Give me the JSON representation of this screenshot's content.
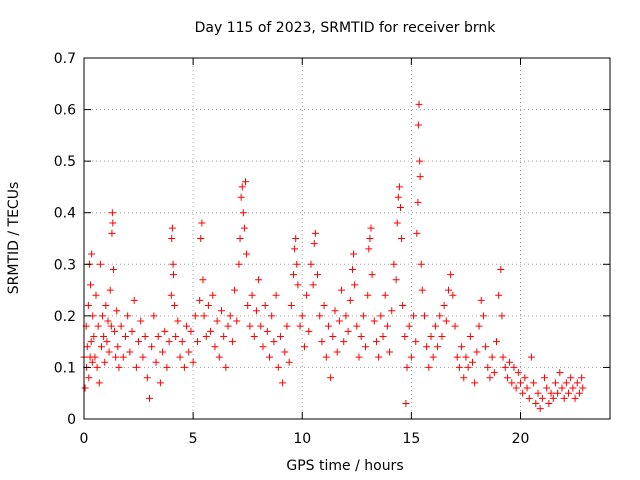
{
  "chart_data": {
    "type": "scatter",
    "title": "Day 115 of 2023, SRMTID for receiver brnk",
    "xlabel": "GPS time / hours",
    "ylabel": "SRMTID / TECUs",
    "xlim": [
      0,
      24.1
    ],
    "ylim": [
      0,
      0.7
    ],
    "xticks": [
      0,
      5,
      10,
      15,
      20
    ],
    "xtick_labels": [
      "0",
      "5",
      "10",
      "15",
      "20"
    ],
    "yticks": [
      0,
      0.1,
      0.2,
      0.3,
      0.4,
      0.5,
      0.6,
      0.7
    ],
    "ytick_labels": [
      "0",
      "0.1",
      "0.2",
      "0.3",
      "0.4",
      "0.5",
      "0.6",
      "0.7"
    ],
    "grid": true,
    "marker": "+",
    "marker_color": "#ff0000",
    "series": [
      {
        "name": "SRMTID",
        "points": [
          [
            0.0,
            0.12
          ],
          [
            0.05,
            0.06
          ],
          [
            0.1,
            0.18
          ],
          [
            0.12,
            0.1
          ],
          [
            0.15,
            0.14
          ],
          [
            0.2,
            0.22
          ],
          [
            0.22,
            0.08
          ],
          [
            0.25,
            0.3
          ],
          [
            0.28,
            0.12
          ],
          [
            0.3,
            0.26
          ],
          [
            0.33,
            0.15
          ],
          [
            0.35,
            0.32
          ],
          [
            0.38,
            0.11
          ],
          [
            0.4,
            0.2
          ],
          [
            0.45,
            0.16
          ],
          [
            0.5,
            0.12
          ],
          [
            0.55,
            0.24
          ],
          [
            0.6,
            0.1
          ],
          [
            0.65,
            0.18
          ],
          [
            0.7,
            0.07
          ],
          [
            0.75,
            0.3
          ],
          [
            0.8,
            0.14
          ],
          [
            0.85,
            0.2
          ],
          [
            0.9,
            0.16
          ],
          [
            0.95,
            0.11
          ],
          [
            1.0,
            0.22
          ],
          [
            1.05,
            0.15
          ],
          [
            1.1,
            0.19
          ],
          [
            1.15,
            0.13
          ],
          [
            1.2,
            0.25
          ],
          [
            1.25,
            0.18
          ],
          [
            1.28,
            0.36
          ],
          [
            1.3,
            0.4
          ],
          [
            1.32,
            0.38
          ],
          [
            1.35,
            0.29
          ],
          [
            1.4,
            0.17
          ],
          [
            1.45,
            0.12
          ],
          [
            1.5,
            0.21
          ],
          [
            1.55,
            0.14
          ],
          [
            1.6,
            0.1
          ],
          [
            1.7,
            0.18
          ],
          [
            1.8,
            0.12
          ],
          [
            1.9,
            0.16
          ],
          [
            2.0,
            0.2
          ],
          [
            2.1,
            0.13
          ],
          [
            2.2,
            0.17
          ],
          [
            2.3,
            0.23
          ],
          [
            2.4,
            0.1
          ],
          [
            2.5,
            0.15
          ],
          [
            2.6,
            0.19
          ],
          [
            2.7,
            0.12
          ],
          [
            2.8,
            0.16
          ],
          [
            2.9,
            0.08
          ],
          [
            3.0,
            0.04
          ],
          [
            3.1,
            0.14
          ],
          [
            3.2,
            0.2
          ],
          [
            3.3,
            0.11
          ],
          [
            3.4,
            0.16
          ],
          [
            3.5,
            0.07
          ],
          [
            3.6,
            0.13
          ],
          [
            3.7,
            0.17
          ],
          [
            3.8,
            0.1
          ],
          [
            3.9,
            0.15
          ],
          [
            4.0,
            0.24
          ],
          [
            4.02,
            0.35
          ],
          [
            4.05,
            0.37
          ],
          [
            4.08,
            0.3
          ],
          [
            4.1,
            0.28
          ],
          [
            4.15,
            0.22
          ],
          [
            4.2,
            0.16
          ],
          [
            4.3,
            0.19
          ],
          [
            4.4,
            0.12
          ],
          [
            4.5,
            0.15
          ],
          [
            4.6,
            0.1
          ],
          [
            4.7,
            0.18
          ],
          [
            4.8,
            0.13
          ],
          [
            4.9,
            0.17
          ],
          [
            5.0,
            0.11
          ],
          [
            5.1,
            0.2
          ],
          [
            5.2,
            0.15
          ],
          [
            5.3,
            0.23
          ],
          [
            5.35,
            0.35
          ],
          [
            5.4,
            0.38
          ],
          [
            5.45,
            0.27
          ],
          [
            5.5,
            0.2
          ],
          [
            5.6,
            0.16
          ],
          [
            5.7,
            0.22
          ],
          [
            5.8,
            0.17
          ],
          [
            5.9,
            0.24
          ],
          [
            6.0,
            0.14
          ],
          [
            6.1,
            0.19
          ],
          [
            6.2,
            0.12
          ],
          [
            6.3,
            0.21
          ],
          [
            6.4,
            0.16
          ],
          [
            6.5,
            0.1
          ],
          [
            6.6,
            0.18
          ],
          [
            6.7,
            0.2
          ],
          [
            6.8,
            0.15
          ],
          [
            6.9,
            0.25
          ],
          [
            7.0,
            0.19
          ],
          [
            7.1,
            0.3
          ],
          [
            7.15,
            0.35
          ],
          [
            7.2,
            0.43
          ],
          [
            7.25,
            0.45
          ],
          [
            7.3,
            0.4
          ],
          [
            7.35,
            0.37
          ],
          [
            7.4,
            0.46
          ],
          [
            7.45,
            0.32
          ],
          [
            7.5,
            0.22
          ],
          [
            7.6,
            0.18
          ],
          [
            7.7,
            0.24
          ],
          [
            7.8,
            0.16
          ],
          [
            7.9,
            0.21
          ],
          [
            8.0,
            0.27
          ],
          [
            8.1,
            0.18
          ],
          [
            8.2,
            0.14
          ],
          [
            8.3,
            0.22
          ],
          [
            8.4,
            0.17
          ],
          [
            8.5,
            0.12
          ],
          [
            8.6,
            0.2
          ],
          [
            8.7,
            0.15
          ],
          [
            8.8,
            0.24
          ],
          [
            8.9,
            0.1
          ],
          [
            9.0,
            0.16
          ],
          [
            9.1,
            0.07
          ],
          [
            9.2,
            0.13
          ],
          [
            9.3,
            0.18
          ],
          [
            9.4,
            0.11
          ],
          [
            9.5,
            0.22
          ],
          [
            9.6,
            0.28
          ],
          [
            9.65,
            0.33
          ],
          [
            9.7,
            0.35
          ],
          [
            9.75,
            0.3
          ],
          [
            9.8,
            0.26
          ],
          [
            9.9,
            0.18
          ],
          [
            10.0,
            0.2
          ],
          [
            10.1,
            0.14
          ],
          [
            10.2,
            0.24
          ],
          [
            10.3,
            0.17
          ],
          [
            10.4,
            0.3
          ],
          [
            10.5,
            0.26
          ],
          [
            10.55,
            0.34
          ],
          [
            10.6,
            0.36
          ],
          [
            10.7,
            0.28
          ],
          [
            10.8,
            0.2
          ],
          [
            10.9,
            0.15
          ],
          [
            11.0,
            0.22
          ],
          [
            11.1,
            0.12
          ],
          [
            11.2,
            0.18
          ],
          [
            11.3,
            0.08
          ],
          [
            11.4,
            0.16
          ],
          [
            11.5,
            0.21
          ],
          [
            11.6,
            0.13
          ],
          [
            11.7,
            0.19
          ],
          [
            11.8,
            0.25
          ],
          [
            11.9,
            0.15
          ],
          [
            12.0,
            0.2
          ],
          [
            12.1,
            0.17
          ],
          [
            12.2,
            0.23
          ],
          [
            12.3,
            0.29
          ],
          [
            12.35,
            0.32
          ],
          [
            12.4,
            0.26
          ],
          [
            12.5,
            0.18
          ],
          [
            12.6,
            0.12
          ],
          [
            12.7,
            0.16
          ],
          [
            12.8,
            0.2
          ],
          [
            12.9,
            0.14
          ],
          [
            13.0,
            0.24
          ],
          [
            13.05,
            0.33
          ],
          [
            13.1,
            0.35
          ],
          [
            13.15,
            0.37
          ],
          [
            13.2,
            0.28
          ],
          [
            13.3,
            0.19
          ],
          [
            13.4,
            0.15
          ],
          [
            13.5,
            0.12
          ],
          [
            13.6,
            0.2
          ],
          [
            13.7,
            0.16
          ],
          [
            13.8,
            0.24
          ],
          [
            13.9,
            0.18
          ],
          [
            14.0,
            0.13
          ],
          [
            14.1,
            0.21
          ],
          [
            14.2,
            0.3
          ],
          [
            14.3,
            0.27
          ],
          [
            14.35,
            0.38
          ],
          [
            14.4,
            0.43
          ],
          [
            14.45,
            0.45
          ],
          [
            14.5,
            0.41
          ],
          [
            14.55,
            0.35
          ],
          [
            14.6,
            0.22
          ],
          [
            14.7,
            0.16
          ],
          [
            14.75,
            0.03
          ],
          [
            14.8,
            0.1
          ],
          [
            14.9,
            0.18
          ],
          [
            15.0,
            0.12
          ],
          [
            15.1,
            0.2
          ],
          [
            15.2,
            0.15
          ],
          [
            15.25,
            0.36
          ],
          [
            15.3,
            0.42
          ],
          [
            15.32,
            0.57
          ],
          [
            15.35,
            0.61
          ],
          [
            15.38,
            0.5
          ],
          [
            15.4,
            0.47
          ],
          [
            15.45,
            0.3
          ],
          [
            15.5,
            0.25
          ],
          [
            15.6,
            0.2
          ],
          [
            15.7,
            0.14
          ],
          [
            15.8,
            0.1
          ],
          [
            15.9,
            0.16
          ],
          [
            16.0,
            0.12
          ],
          [
            16.1,
            0.18
          ],
          [
            16.2,
            0.14
          ],
          [
            16.3,
            0.2
          ],
          [
            16.4,
            0.16
          ],
          [
            16.5,
            0.22
          ],
          [
            16.6,
            0.19
          ],
          [
            16.7,
            0.25
          ],
          [
            16.8,
            0.28
          ],
          [
            16.9,
            0.24
          ],
          [
            17.0,
            0.18
          ],
          [
            17.1,
            0.12
          ],
          [
            17.2,
            0.1
          ],
          [
            17.3,
            0.14
          ],
          [
            17.4,
            0.08
          ],
          [
            17.5,
            0.12
          ],
          [
            17.6,
            0.1
          ],
          [
            17.7,
            0.16
          ],
          [
            17.8,
            0.11
          ],
          [
            17.9,
            0.07
          ],
          [
            18.0,
            0.13
          ],
          [
            18.1,
            0.18
          ],
          [
            18.2,
            0.23
          ],
          [
            18.3,
            0.2
          ],
          [
            18.4,
            0.14
          ],
          [
            18.5,
            0.1
          ],
          [
            18.6,
            0.08
          ],
          [
            18.7,
            0.12
          ],
          [
            18.8,
            0.09
          ],
          [
            18.9,
            0.15
          ],
          [
            19.0,
            0.24
          ],
          [
            19.1,
            0.29
          ],
          [
            19.15,
            0.2
          ],
          [
            19.2,
            0.12
          ],
          [
            19.3,
            0.1
          ],
          [
            19.4,
            0.08
          ],
          [
            19.5,
            0.11
          ],
          [
            19.6,
            0.07
          ],
          [
            19.7,
            0.1
          ],
          [
            19.8,
            0.06
          ],
          [
            19.9,
            0.09
          ],
          [
            20.0,
            0.07
          ],
          [
            20.1,
            0.05
          ],
          [
            20.2,
            0.08
          ],
          [
            20.3,
            0.06
          ],
          [
            20.4,
            0.04
          ],
          [
            20.5,
            0.12
          ],
          [
            20.6,
            0.07
          ],
          [
            20.7,
            0.03
          ],
          [
            20.8,
            0.05
          ],
          [
            20.9,
            0.02
          ],
          [
            21.0,
            0.04
          ],
          [
            21.1,
            0.08
          ],
          [
            21.2,
            0.06
          ],
          [
            21.3,
            0.03
          ],
          [
            21.4,
            0.05
          ],
          [
            21.5,
            0.04
          ],
          [
            21.6,
            0.07
          ],
          [
            21.7,
            0.05
          ],
          [
            21.8,
            0.09
          ],
          [
            21.9,
            0.06
          ],
          [
            22.0,
            0.04
          ],
          [
            22.1,
            0.07
          ],
          [
            22.2,
            0.05
          ],
          [
            22.3,
            0.08
          ],
          [
            22.4,
            0.06
          ],
          [
            22.5,
            0.04
          ],
          [
            22.6,
            0.07
          ],
          [
            22.7,
            0.05
          ],
          [
            22.8,
            0.08
          ],
          [
            22.85,
            0.06
          ]
        ]
      }
    ]
  }
}
